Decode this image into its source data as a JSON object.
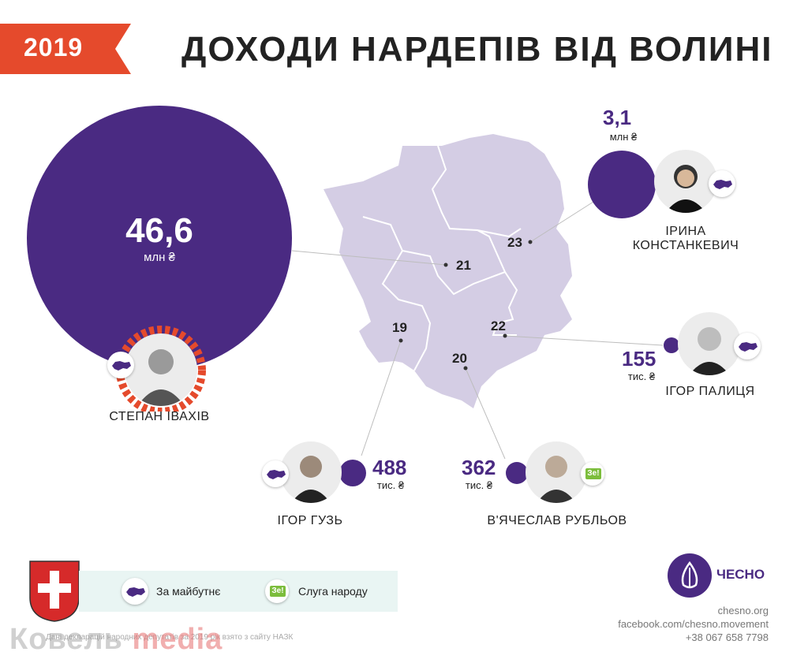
{
  "header": {
    "year": "2019",
    "title": "ДОХОДИ НАРДЕПІВ ВІД ВОЛИНІ",
    "accent_color": "#e54a2c"
  },
  "colors": {
    "purple": "#4a2a82",
    "map_fill": "#d4cde4",
    "party_green": "#7cbd3c"
  },
  "districts": [
    {
      "number": "23"
    },
    {
      "number": "21"
    },
    {
      "number": "22"
    },
    {
      "number": "19"
    },
    {
      "number": "20"
    }
  ],
  "deputies": [
    {
      "name": "СТЕПАН ІВАХІВ",
      "amount": "46,6",
      "unit": "млн ₴",
      "district": "21",
      "party": "За майбутнє"
    },
    {
      "name": "ІРИНА КОНСТАНКЕВИЧ",
      "amount": "3,1",
      "unit": "млн ₴",
      "district": "23",
      "party": "За майбутнє"
    },
    {
      "name": "ІГОР ПАЛИЦЯ",
      "amount": "155",
      "unit": "тис. ₴",
      "district": "22",
      "party": "За майбутнє"
    },
    {
      "name": "ІГОР ГУЗЬ",
      "amount": "488",
      "unit": "тис. ₴",
      "district": "19",
      "party": "За майбутнє"
    },
    {
      "name": "В'ЯЧЕСЛАВ РУБЛЬОВ",
      "amount": "362",
      "unit": "тис. ₴",
      "district": "20",
      "party": "Слуга народу"
    }
  ],
  "legend": {
    "items": [
      {
        "label": "За майбутнє",
        "icon": "ukraine-map-icon"
      },
      {
        "label": "Слуга народу",
        "icon": "ze-icon",
        "icon_text": "Зе!"
      }
    ]
  },
  "footer": {
    "note": "Дані декларацій народних депутатів за 2019 рік взято з сайту НАЗК",
    "brand": "ЧЕСНО",
    "site": "chesno.org",
    "facebook": "facebook.com/chesno.movement",
    "phone": "+38 067 658 7798"
  },
  "watermark": {
    "part1": "Ковель ",
    "part2": "media"
  }
}
